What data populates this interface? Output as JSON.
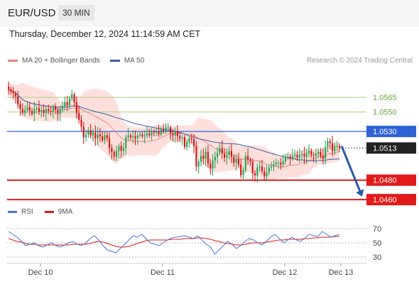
{
  "header": {
    "symbol": "EUR/USD",
    "interval": "30 MIN"
  },
  "timestamp": "Thursday, December 12, 2024 11:14:59 AM CET",
  "legend": {
    "ma20_label": "MA 20 + Bollinger Bands",
    "ma50_label": "MA 50",
    "copyright": "Research © 2024 Trading Central"
  },
  "rsi_legend": {
    "rsi_label": "RSI",
    "ma9_label": "9MA"
  },
  "colors": {
    "bull": "#1a9d4f",
    "bear": "#d20b0b",
    "ma20": "#e8857e",
    "ma50": "#3a5ea8",
    "bollinger_fill": "#fde0dc",
    "resistance": "#a8cf7a",
    "pivot": "#2f64d6",
    "support": "#e21a1a",
    "arrow": "#2a5aa6",
    "rsi": "#4a74d8",
    "rsi_ma": "#e21a1a"
  },
  "chart_data": [
    {
      "type": "candlestick",
      "title": "EUR/USD",
      "interval": "30 MIN",
      "x_tick_labels": [
        "Dec 10",
        "Dec 11",
        "Dec 12",
        "Dec 13"
      ],
      "ylim": [
        1.0455,
        1.0595
      ],
      "levels": [
        {
          "value": 1.0565,
          "label": "1.0565",
          "kind": "resistance"
        },
        {
          "value": 1.055,
          "label": "1.0550",
          "kind": "resistance"
        },
        {
          "value": 1.053,
          "label": "1.0530",
          "kind": "pivot"
        },
        {
          "value": 1.048,
          "label": "1.0480",
          "kind": "support"
        },
        {
          "value": 1.046,
          "label": "1.0460",
          "kind": "support"
        }
      ],
      "last_price": {
        "value": 1.0513,
        "label": "1.0513"
      },
      "forecast_arrow": {
        "from": 1.0515,
        "to": 1.0463
      },
      "series": [
        {
          "name": "Price",
          "close": [
            1.0573,
            1.0571,
            1.0569,
            1.0566,
            1.0558,
            1.0553,
            1.0549,
            1.0552,
            1.0555,
            1.0551,
            1.0548,
            1.0553,
            1.0554,
            1.055,
            1.0552,
            1.0549,
            1.0553,
            1.0551,
            1.055,
            1.0555,
            1.0552,
            1.0548,
            1.0553,
            1.0556,
            1.056,
            1.0557,
            1.0564,
            1.0568,
            1.056,
            1.0549,
            1.0542,
            1.0535,
            1.0524,
            1.0527,
            1.0531,
            1.0526,
            1.0529,
            1.0523,
            1.0527,
            1.0525,
            1.0521,
            1.0526,
            1.0523,
            1.0513,
            1.0509,
            1.0504,
            1.051,
            1.0515,
            1.051,
            1.0513,
            1.0524,
            1.0526,
            1.0524,
            1.0525,
            1.0523,
            1.0526,
            1.0527,
            1.0525,
            1.0526,
            1.0528,
            1.0526,
            1.053,
            1.0529,
            1.053,
            1.0527,
            1.0532,
            1.053,
            1.0534,
            1.0534,
            1.0528,
            1.0526,
            1.053,
            1.0525,
            1.0523,
            1.0524,
            1.0514,
            1.0519,
            1.0523,
            1.0522,
            1.0515,
            1.0494,
            1.0499,
            1.0505,
            1.0502,
            1.0509,
            1.0497,
            1.0492,
            1.05,
            1.0504,
            1.0508,
            1.0513,
            1.0507,
            1.0503,
            1.0506,
            1.051,
            1.0504,
            1.0498,
            1.0502,
            1.0496,
            1.0485,
            1.049,
            1.0505,
            1.0501,
            1.0499,
            1.0487,
            1.0485,
            1.0493,
            1.0494,
            1.0489,
            1.0484,
            1.0488,
            1.0493,
            1.0494,
            1.0496,
            1.0498,
            1.0498,
            1.0496,
            1.0499,
            1.0503,
            1.0504,
            1.0502,
            1.0505,
            1.0506,
            1.0503,
            1.0506,
            1.0507,
            1.0504,
            1.0508,
            1.051,
            1.0506,
            1.0505,
            1.0507,
            1.0509,
            1.0505,
            1.0502,
            1.0514,
            1.052,
            1.0518,
            1.051,
            1.0515,
            1.0515,
            1.0513
          ]
        },
        {
          "name": "MA 20"
        },
        {
          "name": "MA 50"
        }
      ]
    },
    {
      "type": "line",
      "title": "RSI",
      "y_tick_labels": [
        "70",
        "50",
        "30"
      ],
      "ylim": [
        20,
        80
      ],
      "series": [
        {
          "name": "RSI",
          "values": [
            66,
            62,
            58,
            52,
            46,
            48,
            50,
            46,
            44,
            47,
            50,
            46,
            44,
            47,
            50,
            52,
            48,
            46,
            50,
            56,
            60,
            54,
            46,
            40,
            38,
            36,
            42,
            48,
            54,
            60,
            58,
            62,
            56,
            50,
            48,
            46,
            50,
            54,
            57,
            58,
            59,
            60,
            58,
            56,
            60,
            54,
            48,
            44,
            34,
            40,
            46,
            52,
            48,
            42,
            46,
            52,
            56,
            54,
            50,
            47,
            52,
            58,
            62,
            56,
            50,
            54,
            58,
            54,
            52,
            57,
            62,
            60,
            59,
            66,
            62,
            58,
            60,
            62
          ]
        },
        {
          "name": "9MA",
          "values": [
            56,
            54,
            52,
            51,
            49,
            48,
            48,
            47,
            47,
            47,
            47,
            47,
            47,
            47,
            47,
            48,
            48,
            48,
            48,
            49,
            51,
            52,
            51,
            49,
            47,
            45,
            44,
            44,
            45,
            47,
            49,
            51,
            53,
            54,
            54,
            54,
            54,
            54,
            55,
            55,
            55,
            56,
            56,
            56,
            57,
            57,
            56,
            55,
            53,
            52,
            50,
            49,
            48,
            47,
            47,
            48,
            49,
            50,
            50,
            50,
            51,
            52,
            53,
            54,
            54,
            55,
            55,
            55,
            55,
            56,
            56,
            57,
            57,
            58,
            58,
            58,
            59,
            59
          ]
        }
      ]
    }
  ]
}
